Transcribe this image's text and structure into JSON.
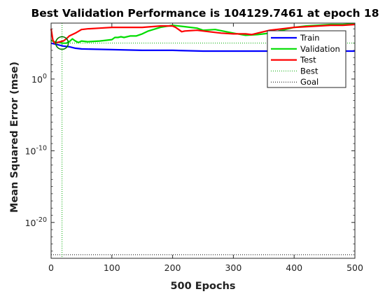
{
  "chart_data": {
    "type": "line",
    "title": "Best Validation Performance is 104129.7461 at epoch 18",
    "xlabel": "500 Epochs",
    "ylabel": "Mean Squared Error  (mse)",
    "xlim": [
      0,
      500
    ],
    "ylim_log10": [
      -25,
      7.8
    ],
    "y_scale": "log",
    "x_ticks": [
      {
        "value": 0,
        "label": "0"
      },
      {
        "value": 100,
        "label": "100"
      },
      {
        "value": 200,
        "label": "200"
      },
      {
        "value": 300,
        "label": "300"
      },
      {
        "value": 400,
        "label": "400"
      },
      {
        "value": 500,
        "label": "500"
      }
    ],
    "y_ticks": [
      {
        "log10": 0,
        "base": "10",
        "exp": "0"
      },
      {
        "log10": -10,
        "base": "10",
        "exp": "-10"
      },
      {
        "log10": -20,
        "base": "10",
        "exp": "-20"
      }
    ],
    "legend_position": "top-right",
    "series": [
      {
        "name": "Train",
        "color": "#0000ff",
        "style": "solid",
        "x": [
          0,
          10,
          20,
          30,
          40,
          50,
          100,
          150,
          200,
          250,
          300,
          350,
          400,
          450,
          500
        ],
        "log10y": [
          5.0,
          4.8,
          4.6,
          4.5,
          4.3,
          4.2,
          4.1,
          4.0,
          4.0,
          3.9,
          3.9,
          3.9,
          3.9,
          3.9,
          3.9
        ]
      },
      {
        "name": "Validation",
        "color": "#00dd00",
        "style": "solid",
        "x": [
          0,
          5,
          10,
          15,
          18,
          25,
          30,
          35,
          40,
          45,
          50,
          60,
          80,
          100,
          105,
          110,
          115,
          120,
          130,
          140,
          150,
          160,
          180,
          200,
          210,
          220,
          240,
          250,
          270,
          300,
          320,
          340,
          360,
          380,
          400,
          420,
          440,
          460,
          480,
          500
        ],
        "log10y": [
          5.4,
          5.2,
          5.1,
          5.1,
          5.0,
          5.0,
          5.2,
          5.6,
          5.3,
          5.1,
          5.3,
          5.2,
          5.3,
          5.5,
          5.8,
          5.8,
          5.9,
          5.8,
          6.0,
          6.0,
          6.3,
          6.7,
          7.2,
          7.5,
          7.4,
          7.3,
          7.1,
          6.8,
          6.9,
          6.4,
          6.1,
          6.2,
          6.4,
          6.8,
          7.2,
          7.4,
          7.5,
          7.6,
          7.6,
          7.7
        ]
      },
      {
        "name": "Test",
        "color": "#ff0000",
        "style": "solid",
        "x": [
          0,
          3,
          6,
          10,
          15,
          20,
          25,
          30,
          40,
          50,
          60,
          80,
          100,
          120,
          150,
          180,
          200,
          205,
          210,
          215,
          220,
          240,
          260,
          280,
          300,
          320,
          330,
          340,
          360,
          380,
          400,
          420,
          440,
          460,
          480,
          500
        ],
        "log10y": [
          7.0,
          5.4,
          5.0,
          5.1,
          5.2,
          5.3,
          5.6,
          6.0,
          6.4,
          6.9,
          7.0,
          7.1,
          7.2,
          7.2,
          7.2,
          7.4,
          7.4,
          7.2,
          6.9,
          6.6,
          6.7,
          6.8,
          6.6,
          6.4,
          6.3,
          6.3,
          6.2,
          6.4,
          6.8,
          7.0,
          7.2,
          7.3,
          7.4,
          7.5,
          7.5,
          7.6
        ]
      },
      {
        "name": "Best",
        "color": "#00aa00",
        "style": "dotted"
      },
      {
        "name": "Goal",
        "color": "#000000",
        "style": "dotted",
        "log10y": -24.5
      }
    ],
    "best": {
      "epoch": 18,
      "log10y": 5.0175
    }
  }
}
